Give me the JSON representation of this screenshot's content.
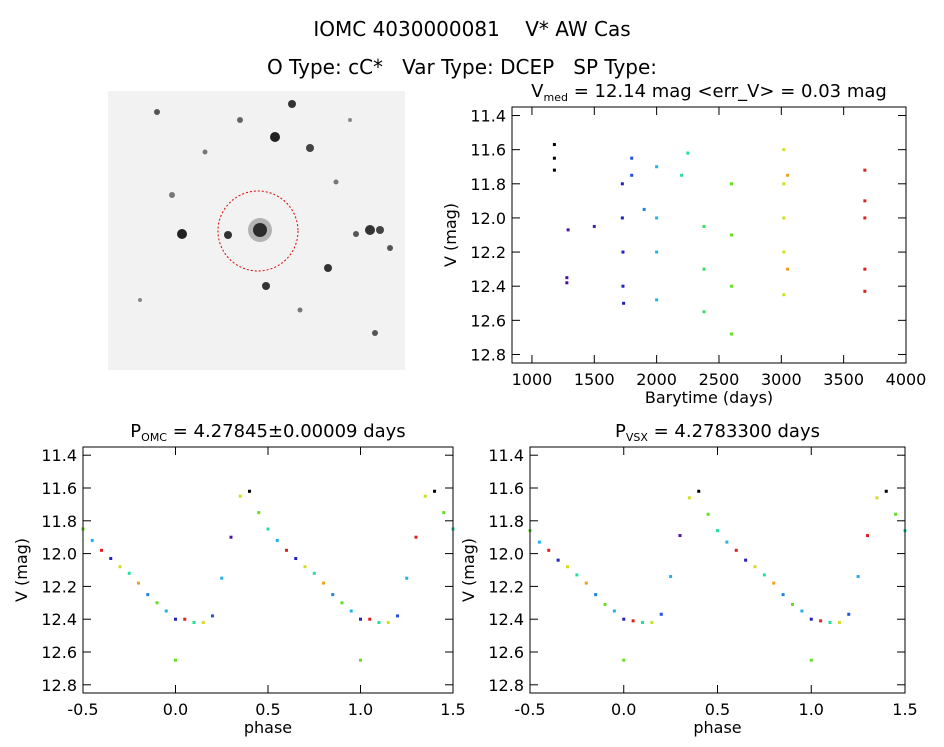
{
  "header": {
    "title": "IOMC 4030000081    V* AW Cas",
    "subtitle": "O Type: cC*   Var Type: DCEP   SP Type:"
  },
  "chart_data": [
    {
      "type": "scatter",
      "title": {
        "main": "V",
        "sub": "med",
        "rest": " = 12.14 mag <err_V> = 0.03 mag"
      },
      "x_label": "Barytime (days)",
      "y_label": "V (mag)",
      "xlim": [
        840,
        4000
      ],
      "xticks": [
        1000,
        1500,
        2000,
        2500,
        3000,
        3500,
        4000
      ],
      "ylim": [
        12.85,
        11.35
      ],
      "yticks": [
        11.4,
        11.6,
        11.8,
        {
          "value": 12,
          "label": "12.0"
        },
        12.2,
        12.4,
        12.6,
        12.8
      ],
      "x": [
        1180,
        1180,
        1180,
        1290,
        1280,
        1280,
        1500,
        1725,
        1725,
        1730,
        1730,
        1735,
        1800,
        1800,
        1900,
        2000,
        2000,
        2000,
        2000,
        2200,
        2250,
        2380,
        2380,
        2380,
        2600,
        2600,
        2600,
        2600,
        3020,
        3020,
        3020,
        3020,
        3020,
        3050,
        3050,
        3670,
        3670,
        3670,
        3670,
        3670
      ],
      "y": [
        11.57,
        11.65,
        11.72,
        12.07,
        12.35,
        12.38,
        12.05,
        11.8,
        12.0,
        12.2,
        12.4,
        12.5,
        11.65,
        11.75,
        11.95,
        11.7,
        12.0,
        12.2,
        12.48,
        11.75,
        11.62,
        12.05,
        12.3,
        12.55,
        11.8,
        12.1,
        12.4,
        12.68,
        11.6,
        11.8,
        12.0,
        12.2,
        12.45,
        11.75,
        12.3,
        11.72,
        11.9,
        12.0,
        12.3,
        12.43
      ],
      "colors": [
        "#000000",
        "#000000",
        "#000000",
        "#5010a0",
        "#5010a0",
        "#5010a0",
        "#4020c0",
        "#2020c0",
        "#2020c0",
        "#2020c0",
        "#2020c0",
        "#2020c0",
        "#2050e0",
        "#2050e0",
        "#2080e0",
        "#20b0f0",
        "#20b0f0",
        "#20b0f0",
        "#20b0f0",
        "#20e0a0",
        "#20e0a0",
        "#30e060",
        "#30e060",
        "#30e060",
        "#60e020",
        "#60e020",
        "#60e020",
        "#60e020",
        "#d0e020",
        "#d0e020",
        "#d0e020",
        "#d0e020",
        "#d0e020",
        "#f0a020",
        "#f0a020",
        "#e02020",
        "#e02020",
        "#e02020",
        "#e02020",
        "#e02020"
      ]
    },
    {
      "type": "scatter",
      "title": {
        "main": "P",
        "sub": "OMC",
        "rest": " = 4.27845±0.00009 days"
      },
      "x_label": "phase",
      "y_label": "V (mag)",
      "xlim": [
        -0.5,
        1.5
      ],
      "xticks": [
        -0.5,
        {
          "value": 0,
          "label": "0.0"
        },
        0.5,
        {
          "value": 1,
          "label": "1.0"
        },
        1.5
      ],
      "ylim": [
        12.85,
        11.35
      ],
      "yticks": [
        11.4,
        11.6,
        11.8,
        {
          "value": 12,
          "label": "12.0"
        },
        12.2,
        12.4,
        12.6,
        12.8
      ],
      "x": [
        -0.5,
        -0.45,
        -0.4,
        -0.35,
        -0.3,
        -0.25,
        -0.2,
        -0.15,
        -0.1,
        -0.05,
        0,
        0.05,
        0.1,
        0.15,
        0.2,
        0.25,
        0.3,
        0.35,
        0.4,
        0.45,
        0.5,
        0.55,
        0.6,
        0.65,
        0.7,
        0.75,
        0.8,
        0.85,
        0.9,
        0.95,
        1,
        1.05,
        1.1,
        1.15,
        1.2,
        1.25,
        1.3,
        1.35,
        1.4,
        1.45,
        1.5,
        0,
        1
      ],
      "y": [
        11.85,
        11.92,
        11.98,
        12.03,
        12.08,
        12.12,
        12.18,
        12.25,
        12.3,
        12.35,
        12.4,
        12.4,
        12.42,
        12.42,
        12.38,
        12.15,
        11.9,
        11.65,
        11.62,
        11.75,
        11.85,
        11.92,
        11.98,
        12.03,
        12.08,
        12.12,
        12.18,
        12.25,
        12.3,
        12.35,
        12.4,
        12.4,
        12.42,
        12.42,
        12.38,
        12.15,
        11.9,
        11.65,
        11.62,
        11.75,
        11.85,
        12.65,
        12.65
      ],
      "colors": [
        "#60e020",
        "#20b0f0",
        "#e02020",
        "#2020c0",
        "#d0e020",
        "#20e0a0",
        "#f0a020",
        "#2080e0",
        "#60e020",
        "#20b0f0",
        "#2020c0",
        "#e02020",
        "#20e0a0",
        "#d0e020",
        "#2050e0",
        "#20b0f0",
        "#5010a0",
        "#d0e020",
        "#000000",
        "#60e020",
        "#20e0a0",
        "#20b0f0",
        "#e02020",
        "#2020c0",
        "#d0e020",
        "#20e0a0",
        "#f0a020",
        "#2080e0",
        "#60e020",
        "#20b0f0",
        "#2020c0",
        "#e02020",
        "#20e0a0",
        "#d0e020",
        "#2050e0",
        "#20b0f0",
        "#e02020",
        "#d0e020",
        "#000000",
        "#60e020",
        "#20e0a0",
        "#60e020",
        "#60e020"
      ]
    },
    {
      "type": "scatter",
      "title": {
        "main": "P",
        "sub": "VSX",
        "rest": " = 4.2783300 days"
      },
      "x_label": "phase",
      "y_label": "V (mag)",
      "xlim": [
        -0.5,
        1.5
      ],
      "xticks": [
        -0.5,
        {
          "value": 0,
          "label": "0.0"
        },
        0.5,
        {
          "value": 1,
          "label": "1.0"
        },
        1.5
      ],
      "ylim": [
        12.85,
        11.35
      ],
      "yticks": [
        11.4,
        11.6,
        11.8,
        {
          "value": 12,
          "label": "12.0"
        },
        12.2,
        12.4,
        12.6,
        12.8
      ],
      "x": [
        -0.5,
        -0.45,
        -0.4,
        -0.35,
        -0.3,
        -0.25,
        -0.2,
        -0.15,
        -0.1,
        -0.05,
        0,
        0.05,
        0.1,
        0.15,
        0.2,
        0.25,
        0.3,
        0.35,
        0.4,
        0.45,
        0.5,
        0.55,
        0.6,
        0.65,
        0.7,
        0.75,
        0.8,
        0.85,
        0.9,
        0.95,
        1,
        1.05,
        1.1,
        1.15,
        1.2,
        1.25,
        1.3,
        1.35,
        1.4,
        1.45,
        1.5,
        0,
        1
      ],
      "y": [
        11.86,
        11.93,
        11.98,
        12.04,
        12.08,
        12.13,
        12.18,
        12.25,
        12.31,
        12.35,
        12.4,
        12.41,
        12.42,
        12.42,
        12.37,
        12.14,
        11.89,
        11.66,
        11.62,
        11.76,
        11.86,
        11.93,
        11.98,
        12.04,
        12.08,
        12.13,
        12.18,
        12.25,
        12.31,
        12.35,
        12.4,
        12.41,
        12.42,
        12.42,
        12.37,
        12.14,
        11.89,
        11.66,
        11.62,
        11.76,
        11.86,
        12.65,
        12.65
      ],
      "colors": [
        "#60e020",
        "#20b0f0",
        "#e02020",
        "#2020c0",
        "#d0e020",
        "#20e0a0",
        "#f0a020",
        "#2080e0",
        "#60e020",
        "#20b0f0",
        "#2020c0",
        "#e02020",
        "#20e0a0",
        "#d0e020",
        "#2050e0",
        "#20b0f0",
        "#5010a0",
        "#d0e020",
        "#000000",
        "#60e020",
        "#20e0a0",
        "#20b0f0",
        "#e02020",
        "#2020c0",
        "#d0e020",
        "#20e0a0",
        "#f0a020",
        "#2080e0",
        "#60e020",
        "#20b0f0",
        "#2020c0",
        "#e02020",
        "#20e0a0",
        "#d0e020",
        "#2050e0",
        "#20b0f0",
        "#e02020",
        "#d0e020",
        "#000000",
        "#60e020",
        "#20e0a0",
        "#60e020",
        "#60e020"
      ]
    }
  ]
}
